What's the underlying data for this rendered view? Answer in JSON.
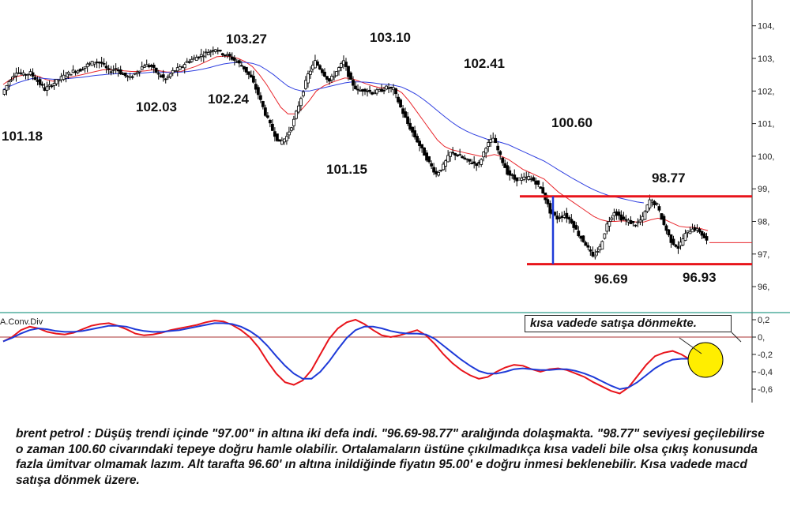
{
  "chart_data": [
    {
      "type": "candlestick",
      "ylim": [
        95.6,
        104.8
      ],
      "y_ticks": [
        "104,",
        "103,",
        "102,",
        "101,",
        "100,",
        "99,",
        "98,",
        "97,",
        "96,"
      ],
      "price_path": [
        101.9,
        102.3,
        102.6,
        102.5,
        102.55,
        102.3,
        102.05,
        102.2,
        102.35,
        102.5,
        102.6,
        102.65,
        102.8,
        102.9,
        102.85,
        102.6,
        102.7,
        102.5,
        102.4,
        102.6,
        102.8,
        102.75,
        102.5,
        102.35,
        102.6,
        102.7,
        102.9,
        103.0,
        103.1,
        103.2,
        103.3,
        103.15,
        103.05,
        102.9,
        102.7,
        102.4,
        101.9,
        101.3,
        100.8,
        100.4,
        100.6,
        101.1,
        101.8,
        102.5,
        102.9,
        102.6,
        102.3,
        102.6,
        102.9,
        102.3,
        102.0,
        102.05,
        101.95,
        102.0,
        102.1,
        102.05,
        101.5,
        101.0,
        100.6,
        100.2,
        99.8,
        99.45,
        99.7,
        100.1,
        100.05,
        99.9,
        99.8,
        99.75,
        100.3,
        100.55,
        100.0,
        99.5,
        99.3,
        99.3,
        99.35,
        99.2,
        98.9,
        98.3,
        98.1,
        98.2,
        98.0,
        97.6,
        97.3,
        96.9,
        97.2,
        97.9,
        98.3,
        98.1,
        98.0,
        97.9,
        98.1,
        98.65,
        98.5,
        97.9,
        97.4,
        97.2,
        97.6,
        97.8,
        97.7,
        97.4
      ],
      "last_price": 97.35,
      "series": [
        {
          "name": "",
          "type": "line",
          "color": "#e8262c",
          "values": [
            102.2,
            102.35,
            102.45,
            102.5,
            102.5,
            102.45,
            102.35,
            102.3,
            102.35,
            102.4,
            102.45,
            102.5,
            102.55,
            102.6,
            102.65,
            102.65,
            102.65,
            102.62,
            102.6,
            102.6,
            102.62,
            102.65,
            102.62,
            102.58,
            102.58,
            102.6,
            102.68,
            102.75,
            102.85,
            102.95,
            103.05,
            103.07,
            103.05,
            103.0,
            102.9,
            102.75,
            102.5,
            102.2,
            101.85,
            101.5,
            101.3,
            101.3,
            101.45,
            101.7,
            102.0,
            102.15,
            102.25,
            102.33,
            102.4,
            102.38,
            102.3,
            102.22,
            102.15,
            102.1,
            102.1,
            102.08,
            101.95,
            101.7,
            101.4,
            101.1,
            100.8,
            100.5,
            100.3,
            100.2,
            100.15,
            100.1,
            100.05,
            100.0,
            100.0,
            100.05,
            100.0,
            99.9,
            99.75,
            99.6,
            99.5,
            99.4,
            99.3,
            99.1,
            98.9,
            98.75,
            98.6,
            98.45,
            98.3,
            98.15,
            98.05,
            98.0,
            98.0,
            98.02,
            98.0,
            97.98,
            97.98,
            98.05,
            98.1,
            98.05,
            97.95,
            97.85,
            97.82,
            97.82,
            97.78,
            97.72
          ]
        },
        {
          "name": "",
          "type": "line",
          "color": "#2f3fe0",
          "values": [
            102.05,
            102.15,
            102.25,
            102.32,
            102.38,
            102.4,
            102.38,
            102.36,
            102.36,
            102.38,
            102.4,
            102.42,
            102.45,
            102.48,
            102.5,
            102.52,
            102.53,
            102.53,
            102.53,
            102.54,
            102.56,
            102.58,
            102.58,
            102.57,
            102.57,
            102.58,
            102.6,
            102.63,
            102.67,
            102.72,
            102.78,
            102.83,
            102.86,
            102.88,
            102.88,
            102.85,
            102.78,
            102.65,
            102.5,
            102.32,
            102.15,
            102.05,
            102.0,
            102.0,
            102.05,
            102.1,
            102.15,
            102.2,
            102.25,
            102.28,
            102.28,
            102.27,
            102.25,
            102.22,
            102.2,
            102.17,
            102.12,
            102.02,
            101.9,
            101.75,
            101.58,
            101.4,
            101.22,
            101.05,
            100.9,
            100.78,
            100.68,
            100.6,
            100.52,
            100.48,
            100.42,
            100.35,
            100.25,
            100.15,
            100.05,
            99.95,
            99.85,
            99.72,
            99.58,
            99.45,
            99.32,
            99.2,
            99.08,
            98.97,
            98.88,
            98.8,
            98.75,
            98.7,
            98.65,
            98.6,
            98.57
          ]
        }
      ],
      "annotations": [
        "101.18",
        "102.03",
        "103.27",
        "102.24",
        "103.10",
        "101.15",
        "102.41",
        "100.60",
        "98.77",
        "96.69",
        "96.93"
      ],
      "horizontal_levels": [
        98.77,
        96.69
      ],
      "level_color": "#e8141b",
      "range_marker_color": "#1e3ad8"
    },
    {
      "type": "line",
      "title": "A.Conv.Div",
      "ylim": [
        -0.68,
        0.25
      ],
      "y_ticks": [
        "0,2",
        "0,",
        "-0,2",
        "-0,4",
        "-0,6"
      ],
      "series": [
        {
          "name": "",
          "color": "#e8141b",
          "values": [
            -0.05,
            0.0,
            0.08,
            0.12,
            0.1,
            0.06,
            0.04,
            0.03,
            0.05,
            0.09,
            0.13,
            0.15,
            0.16,
            0.13,
            0.09,
            0.04,
            0.02,
            0.03,
            0.05,
            0.08,
            0.1,
            0.12,
            0.14,
            0.17,
            0.19,
            0.18,
            0.14,
            0.08,
            0.0,
            -0.12,
            -0.28,
            -0.42,
            -0.52,
            -0.55,
            -0.5,
            -0.38,
            -0.2,
            -0.02,
            0.1,
            0.17,
            0.2,
            0.15,
            0.08,
            0.02,
            0.0,
            0.02,
            0.05,
            0.08,
            0.02,
            -0.08,
            -0.2,
            -0.3,
            -0.38,
            -0.44,
            -0.48,
            -0.46,
            -0.4,
            -0.35,
            -0.32,
            -0.33,
            -0.37,
            -0.4,
            -0.37,
            -0.36,
            -0.38,
            -0.42,
            -0.46,
            -0.52,
            -0.57,
            -0.62,
            -0.65,
            -0.58,
            -0.45,
            -0.32,
            -0.22,
            -0.18,
            -0.16,
            -0.2,
            -0.26,
            -0.22,
            -0.25
          ]
        },
        {
          "name": "",
          "color": "#1e3ad8",
          "values": [
            -0.05,
            -0.01,
            0.04,
            0.08,
            0.1,
            0.09,
            0.07,
            0.06,
            0.06,
            0.07,
            0.09,
            0.11,
            0.13,
            0.13,
            0.12,
            0.09,
            0.07,
            0.06,
            0.06,
            0.07,
            0.08,
            0.1,
            0.12,
            0.14,
            0.16,
            0.16,
            0.15,
            0.12,
            0.07,
            0.0,
            -0.1,
            -0.22,
            -0.33,
            -0.42,
            -0.48,
            -0.48,
            -0.4,
            -0.28,
            -0.14,
            -0.01,
            0.08,
            0.12,
            0.12,
            0.1,
            0.07,
            0.05,
            0.04,
            0.04,
            0.03,
            -0.02,
            -0.1,
            -0.18,
            -0.26,
            -0.33,
            -0.39,
            -0.42,
            -0.42,
            -0.4,
            -0.37,
            -0.36,
            -0.37,
            -0.38,
            -0.38,
            -0.37,
            -0.37,
            -0.39,
            -0.42,
            -0.46,
            -0.51,
            -0.56,
            -0.6,
            -0.58,
            -0.52,
            -0.44,
            -0.36,
            -0.3,
            -0.26,
            -0.25,
            -0.25,
            -0.24,
            -0.24
          ]
        }
      ],
      "annotations": [
        "kısa vadede satışa dönmekte."
      ],
      "highlight_color": "#ffee00"
    }
  ],
  "commentary": "brent petrol : Düşüş trendi içinde \"97.00\" in altına iki defa indi. \"96.69-98.77\" aralığında dolaşmakta. \"98.77\" seviyesi geçilebilirse o zaman 100.60 civarındaki tepeye doğru hamle olabilir. Ortalamaların üstüne çıkılmadıkça kısa vadeli bile olsa çıkış konusunda fazla ümitvar olmamak lazım. Alt tarafta 96.60' ın altına inildiğinde fiyatın 95.00' e doğru inmesi beklenebilir. Kısa vadede macd satışa dönmek üzere."
}
